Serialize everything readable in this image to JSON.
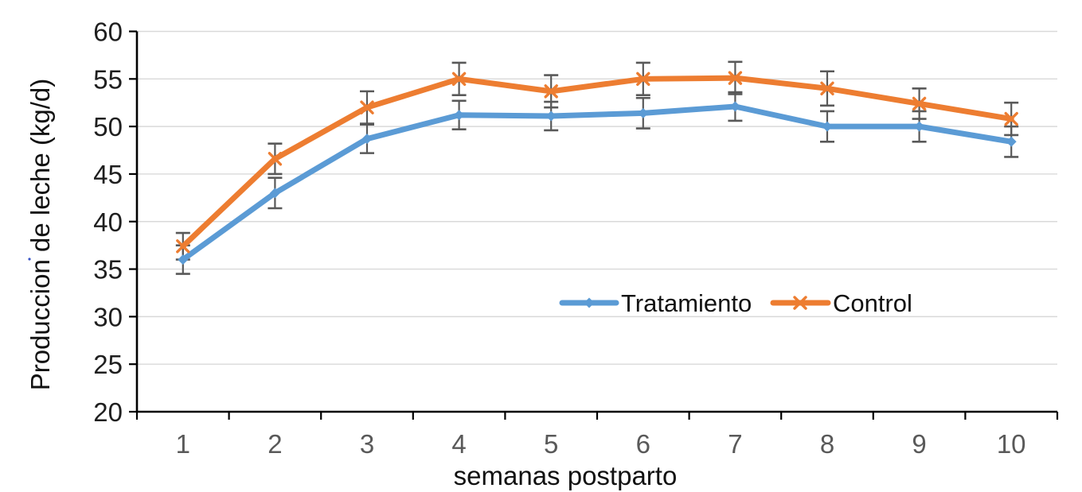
{
  "chart_data": {
    "type": "line",
    "title": "",
    "xlabel": "semanas postparto",
    "ylabel": "Produccion de leche (kg/d)",
    "x": [
      1,
      2,
      3,
      4,
      5,
      6,
      7,
      8,
      9,
      10
    ],
    "ylim": [
      20,
      60
    ],
    "yticks": [
      20,
      25,
      30,
      35,
      40,
      45,
      50,
      55,
      60
    ],
    "grid": true,
    "legend_position": "inside center-right",
    "error_bars": true,
    "series": [
      {
        "name": "Tratamiento",
        "color": "#5B9BD5",
        "marker": "diamond",
        "values": [
          36,
          43,
          48.7,
          51.2,
          51.1,
          51.4,
          52.1,
          50,
          50,
          48.4
        ],
        "errors": [
          1.5,
          1.6,
          1.5,
          1.5,
          1.5,
          1.6,
          1.5,
          1.6,
          1.6,
          1.6
        ]
      },
      {
        "name": "Control",
        "color": "#ED7D31",
        "marker": "x",
        "values": [
          37.4,
          46.6,
          52,
          55,
          53.7,
          55,
          55.1,
          54,
          52.4,
          50.8
        ],
        "errors": [
          1.4,
          1.6,
          1.7,
          1.7,
          1.7,
          1.7,
          1.7,
          1.8,
          1.6,
          1.7
        ]
      }
    ],
    "colors": {
      "gridline": "#D9D9D9",
      "axis": "#000000",
      "error_bar": "#595959",
      "xtick_label": "#595959",
      "ytick_label": "#1f1f1f",
      "stray_dot": "#3a55c8"
    }
  }
}
